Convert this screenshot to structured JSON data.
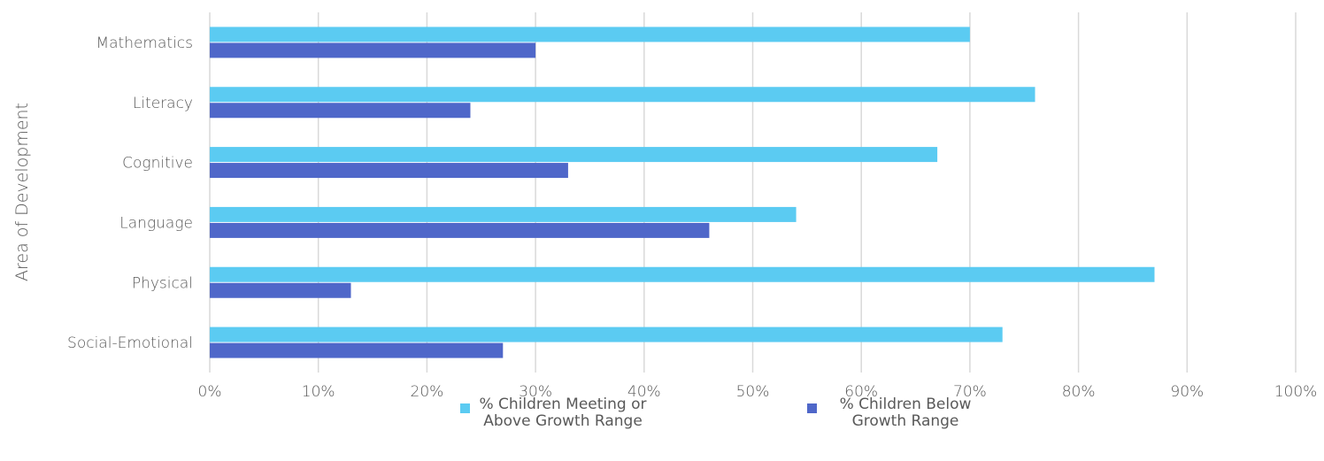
{
  "chart_data": {
    "type": "bar",
    "orientation": "horizontal",
    "categories": [
      "Mathematics",
      "Literacy",
      "Cognitive",
      "Language",
      "Physical",
      "Social-Emotional"
    ],
    "series": [
      {
        "name": "% Children Meeting or Above Growth Range",
        "color": "#5BCBF2",
        "values": [
          70,
          76,
          67,
          54,
          87,
          73
        ]
      },
      {
        "name": "% Children Below Growth Range",
        "color": "#4F67C9",
        "values": [
          30,
          24,
          33,
          46,
          13,
          27
        ]
      }
    ],
    "xlabel": "",
    "ylabel": "Area of Development",
    "xlim": [
      0,
      100
    ],
    "xticks": [
      "0%",
      "10%",
      "20%",
      "30%",
      "40%",
      "50%",
      "60%",
      "70%",
      "80%",
      "90%",
      "100%"
    ],
    "grid": "vertical",
    "legend_position": "bottom"
  }
}
